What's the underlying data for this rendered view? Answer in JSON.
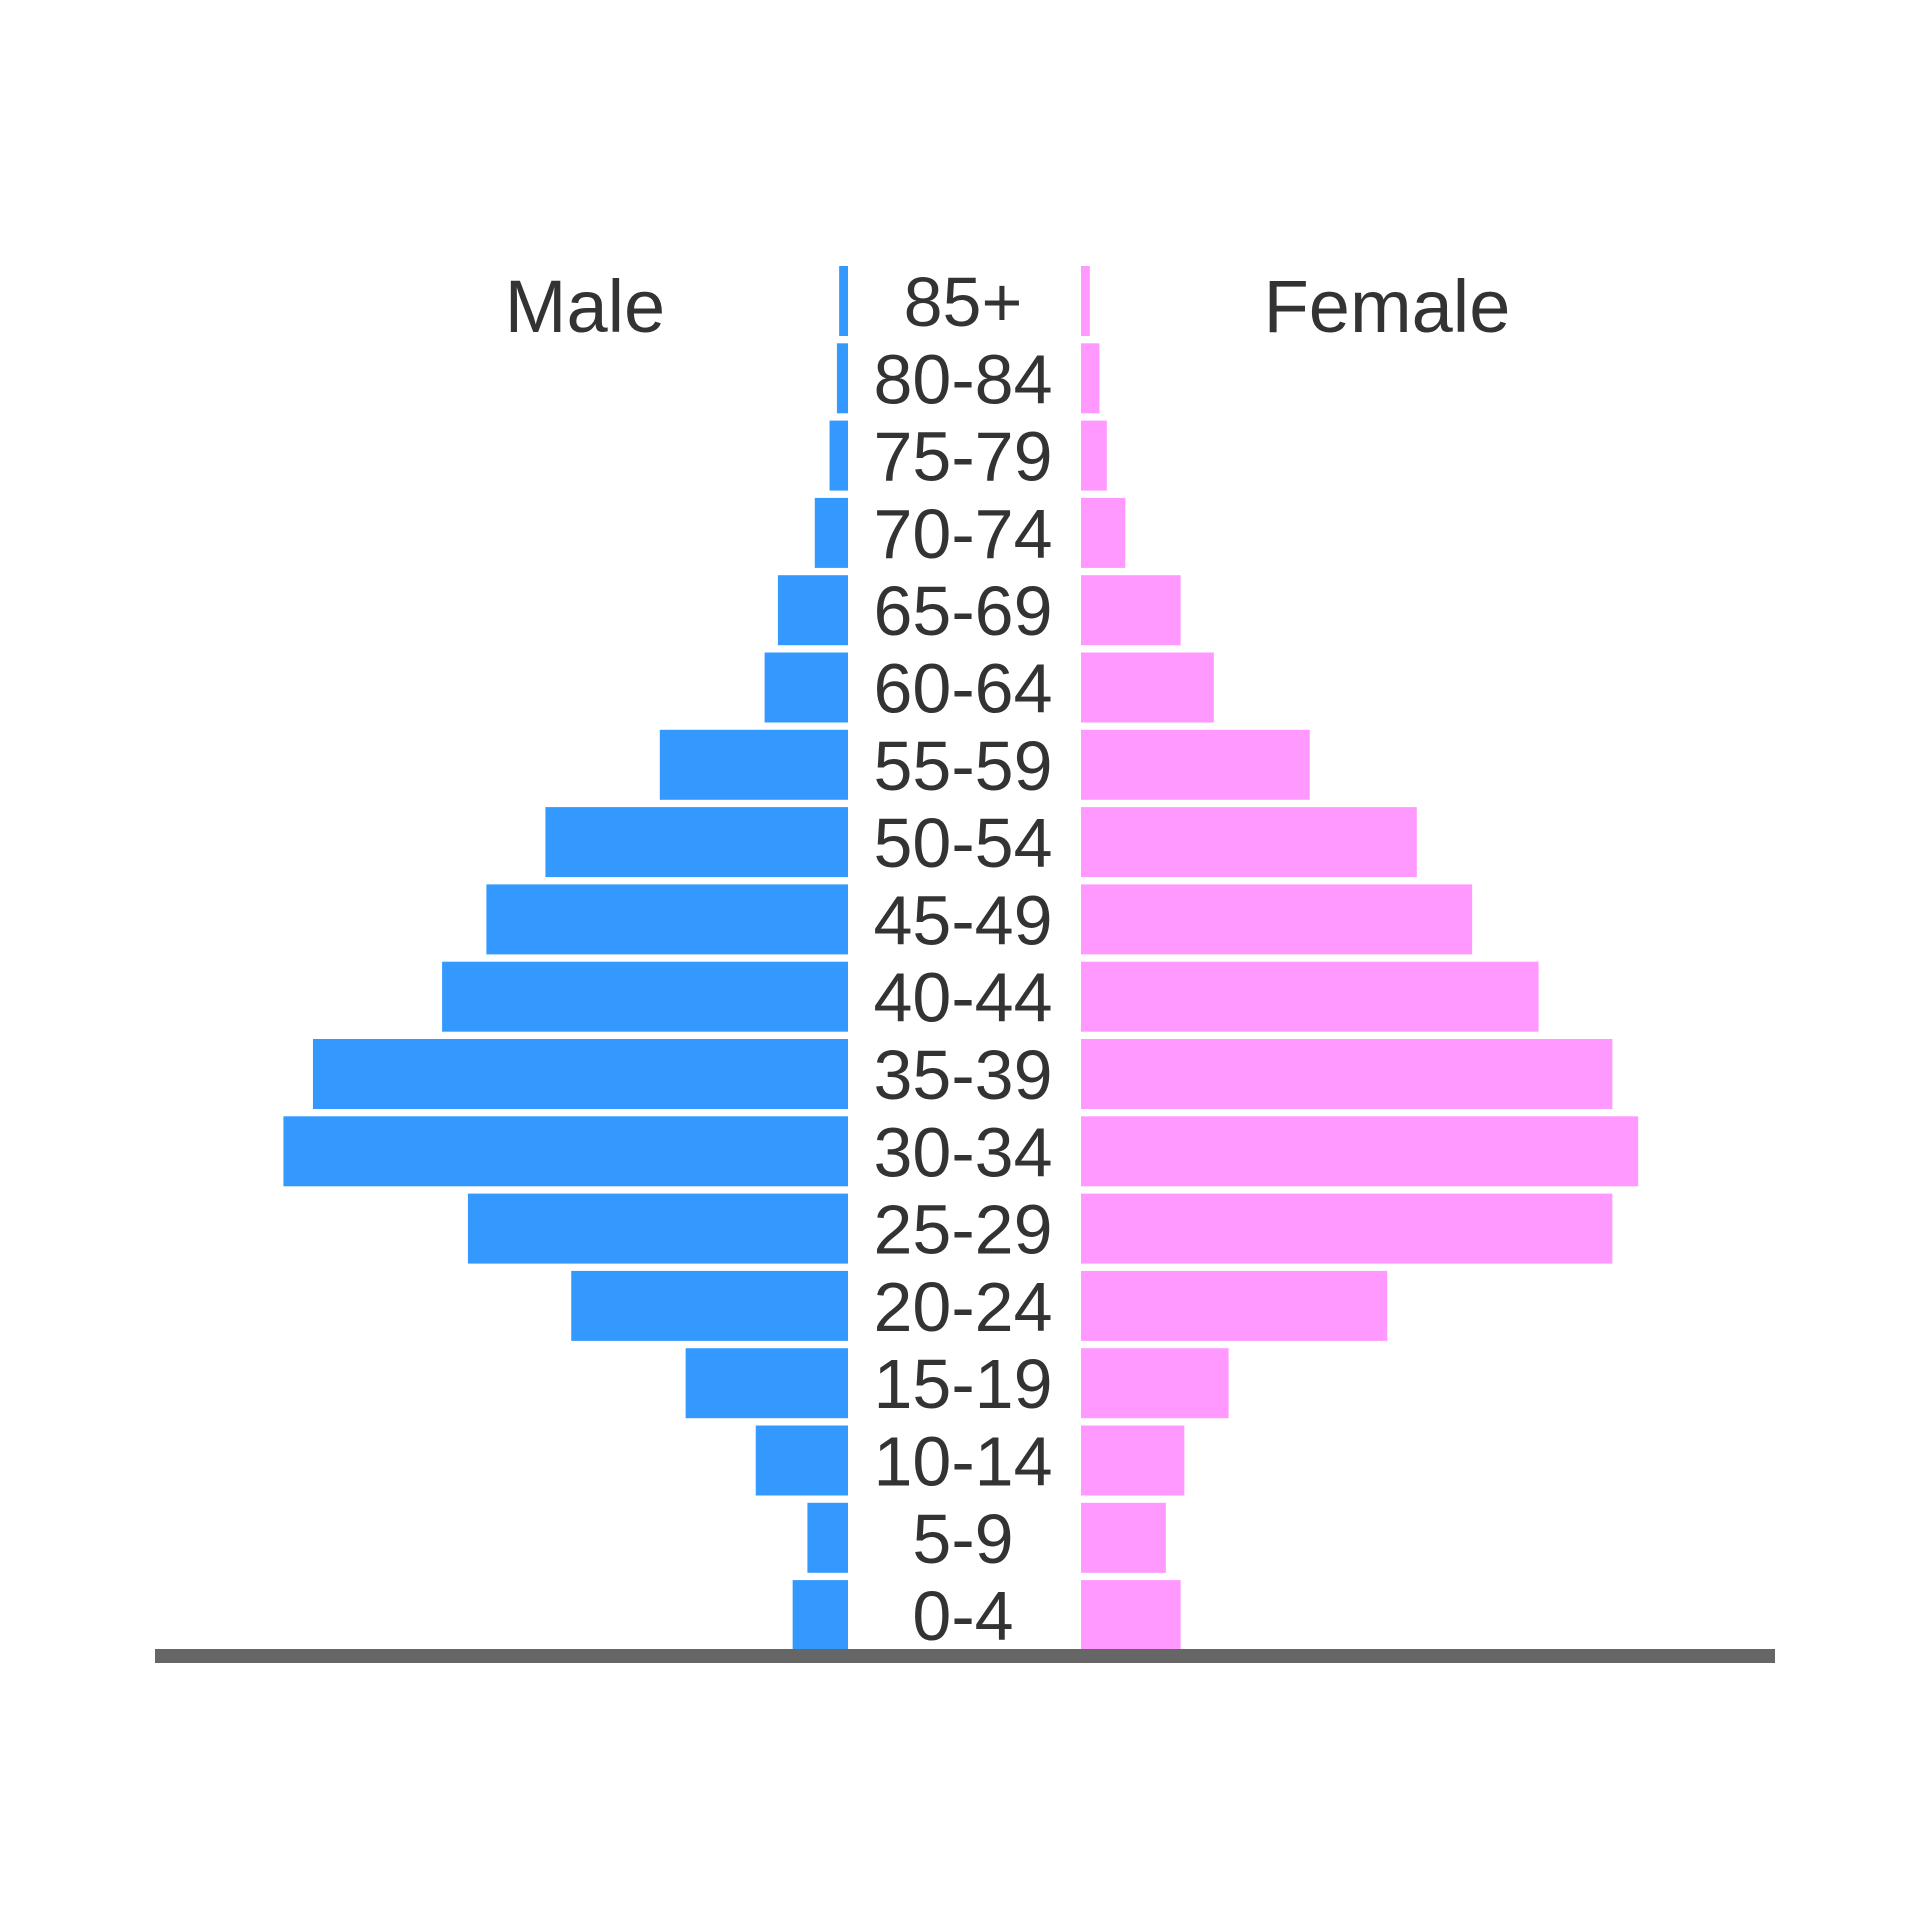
{
  "chart_data": {
    "type": "bar",
    "orientation": "horizontal",
    "subtype": "population-pyramid",
    "categories": [
      "85+",
      "80-84",
      "75-79",
      "70-74",
      "65-69",
      "60-64",
      "55-59",
      "50-54",
      "45-49",
      "40-44",
      "35-39",
      "30-34",
      "25-29",
      "20-24",
      "15-19",
      "10-14",
      "5-9",
      "0-4"
    ],
    "series": [
      {
        "name": "Male",
        "side": "left",
        "color": "#3399ff",
        "values": [
          1.2,
          1.5,
          2.5,
          4.5,
          9.5,
          11.3,
          25.5,
          41,
          49,
          55,
          72.5,
          76.5,
          51.5,
          37.5,
          22,
          12.5,
          5.5,
          7.5
        ]
      },
      {
        "name": "Female",
        "side": "right",
        "color": "#ff99ff",
        "values": [
          1.2,
          2.5,
          3.5,
          6,
          13.5,
          18,
          31,
          45.5,
          53,
          62,
          72,
          75.5,
          72,
          41.5,
          20,
          14,
          11.5,
          13.5
        ]
      }
    ],
    "xlim": [
      0,
      80
    ],
    "grid": false,
    "legend": "inline-top",
    "baseline_color": "#666666"
  }
}
